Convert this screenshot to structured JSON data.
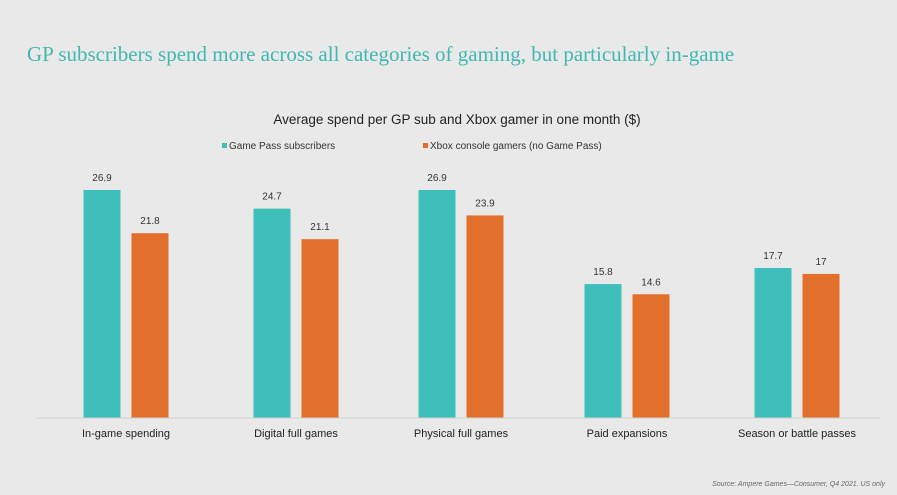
{
  "slide": {
    "title": "GP subscribers spend more across all categories of gaming, but particularly in-game",
    "source": "Source: Ampere Games—Consumer, Q4 2021. US only"
  },
  "chart_data": {
    "type": "bar",
    "title": "Average spend per GP sub and Xbox gamer in one month ($)",
    "xlabel": "",
    "ylabel": "",
    "categories": [
      "In-game spending",
      "Digital full games",
      "Physical full games",
      "Paid expansions",
      "Season or battle passes"
    ],
    "series": [
      {
        "name": "Game Pass subscribers",
        "color": "#3fbfbb",
        "values": [
          26.9,
          24.7,
          26.9,
          15.8,
          17.7
        ]
      },
      {
        "name": "Xbox console gamers (no Game Pass)",
        "color": "#e2702c",
        "values": [
          21.8,
          21.1,
          23.9,
          14.6,
          17
        ]
      }
    ],
    "ylim": [
      0,
      26.9
    ],
    "grid": false,
    "legend": "top-center",
    "data_labels": true
  }
}
